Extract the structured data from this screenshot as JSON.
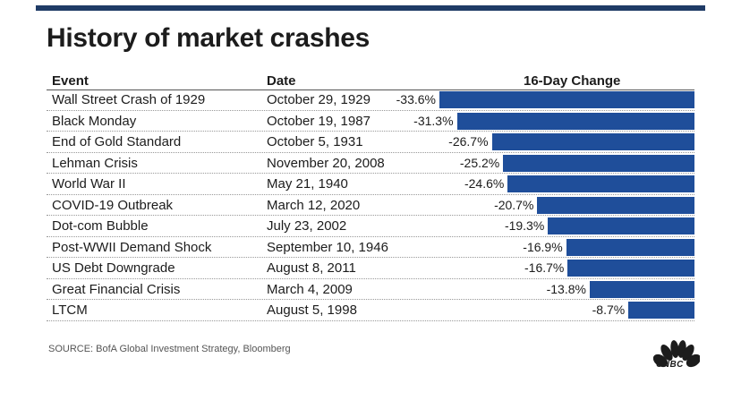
{
  "title": "History of market crashes",
  "headers": {
    "event": "Event",
    "date": "Date",
    "change": "16-Day Change"
  },
  "colors": {
    "bar": "#1f4e9a",
    "topbar": "#1f3b66"
  },
  "source": "SOURCE: BofA Global Investment Strategy, Bloomberg",
  "logo": {
    "icon": "nbc-peacock-icon",
    "text": "CNBC"
  },
  "chart_data": {
    "type": "bar",
    "orientation": "horizontal",
    "title": "History of market crashes",
    "ylabel": "16-Day Change",
    "categories": [
      "Wall Street Crash of 1929",
      "Black Monday",
      "End of Gold Standard",
      "Lehman Crisis",
      "World War II",
      "COVID-19 Outbreak",
      "Dot-com Bubble",
      "Post-WWII Demand Shock",
      "US Debt Downgrade",
      "Great Financial Crisis",
      "LTCM"
    ],
    "dates": [
      "October 29, 1929",
      "October 19, 1987",
      "October 5, 1931",
      "November 20, 2008",
      "May 21, 1940",
      "March 12, 2020",
      "July 23, 2002",
      "September 10, 1946",
      "August 8, 2011",
      "March 4, 2009",
      "August 5, 1998"
    ],
    "values": [
      -33.6,
      -31.3,
      -26.7,
      -25.2,
      -24.6,
      -20.7,
      -19.3,
      -16.9,
      -16.7,
      -13.8,
      -8.7
    ],
    "labels": [
      "-33.6%",
      "-31.3%",
      "-26.7%",
      "-25.2%",
      "-24.6%",
      "-20.7%",
      "-19.3%",
      "-16.9%",
      "-16.7%",
      "-13.8%",
      "-8.7%"
    ]
  }
}
